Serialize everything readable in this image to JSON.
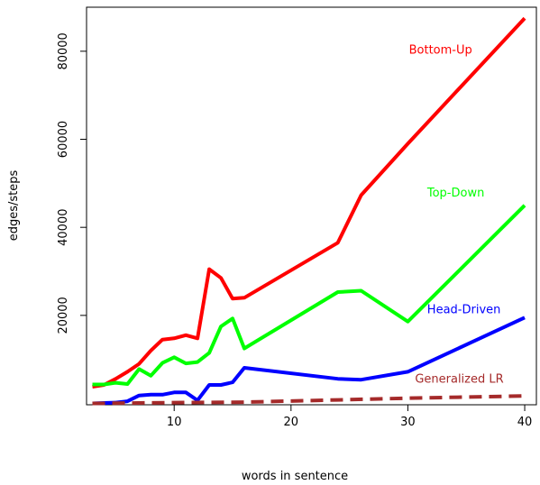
{
  "chart_data": {
    "type": "line",
    "xlabel": "words in sentence",
    "ylabel": "edges/steps",
    "xlim": [
      2.5,
      41.0
    ],
    "ylim": [
      -300,
      90000
    ],
    "xticks": [
      10,
      20,
      30,
      40
    ],
    "yticks": [
      20000,
      40000,
      60000,
      80000
    ],
    "grid": false,
    "legend": "inline labels",
    "series": [
      {
        "name": "Bottom-Up",
        "color": "#ff0000",
        "style": "solid",
        "x": [
          3,
          4,
          5,
          6,
          7,
          8,
          9,
          10,
          11,
          12,
          13,
          14,
          15,
          16,
          24,
          26,
          30,
          40
        ],
        "y": [
          3800,
          4200,
          5600,
          7200,
          9000,
          12000,
          14500,
          14800,
          15500,
          14800,
          30500,
          28500,
          23800,
          24000,
          36500,
          47300,
          59000,
          87500
        ]
      },
      {
        "name": "Top-Down",
        "color": "#00ff00",
        "style": "solid",
        "x": [
          3,
          4,
          5,
          6,
          7,
          8,
          9,
          10,
          11,
          12,
          13,
          14,
          15,
          16,
          24,
          26,
          30,
          40
        ],
        "y": [
          4300,
          4300,
          4700,
          4400,
          7800,
          6300,
          9200,
          10500,
          9100,
          9400,
          11500,
          17500,
          19300,
          12500,
          25300,
          25600,
          18600,
          45000
        ]
      },
      {
        "name": "Head-Driven",
        "color": "#0000ff",
        "style": "solid",
        "x": [
          3,
          4,
          5,
          6,
          7,
          8,
          9,
          10,
          11,
          12,
          13,
          14,
          15,
          16,
          24,
          26,
          30,
          40
        ],
        "y": [
          0,
          100,
          200,
          500,
          1800,
          2000,
          2000,
          2500,
          2500,
          700,
          4200,
          4200,
          4800,
          8100,
          5600,
          5400,
          7200,
          19500
        ]
      },
      {
        "name": "Generalized LR",
        "color": "#a52a2a",
        "style": "dashed",
        "x": [
          3,
          10,
          16,
          24,
          30,
          40
        ],
        "y": [
          0,
          200,
          300,
          800,
          1200,
          1700
        ]
      }
    ],
    "labels": [
      {
        "text": "Bottom-Up",
        "color": "#ff0000",
        "x": 32.8,
        "y": 79500
      },
      {
        "text": "Top-Down",
        "color": "#00ff00",
        "x": 34.1,
        "y": 47000
      },
      {
        "text": "Head-Driven",
        "color": "#0000ff",
        "x": 34.8,
        "y": 20500
      },
      {
        "text": "Generalized LR",
        "color": "#a52a2a",
        "x": 34.4,
        "y": 4700
      }
    ]
  }
}
